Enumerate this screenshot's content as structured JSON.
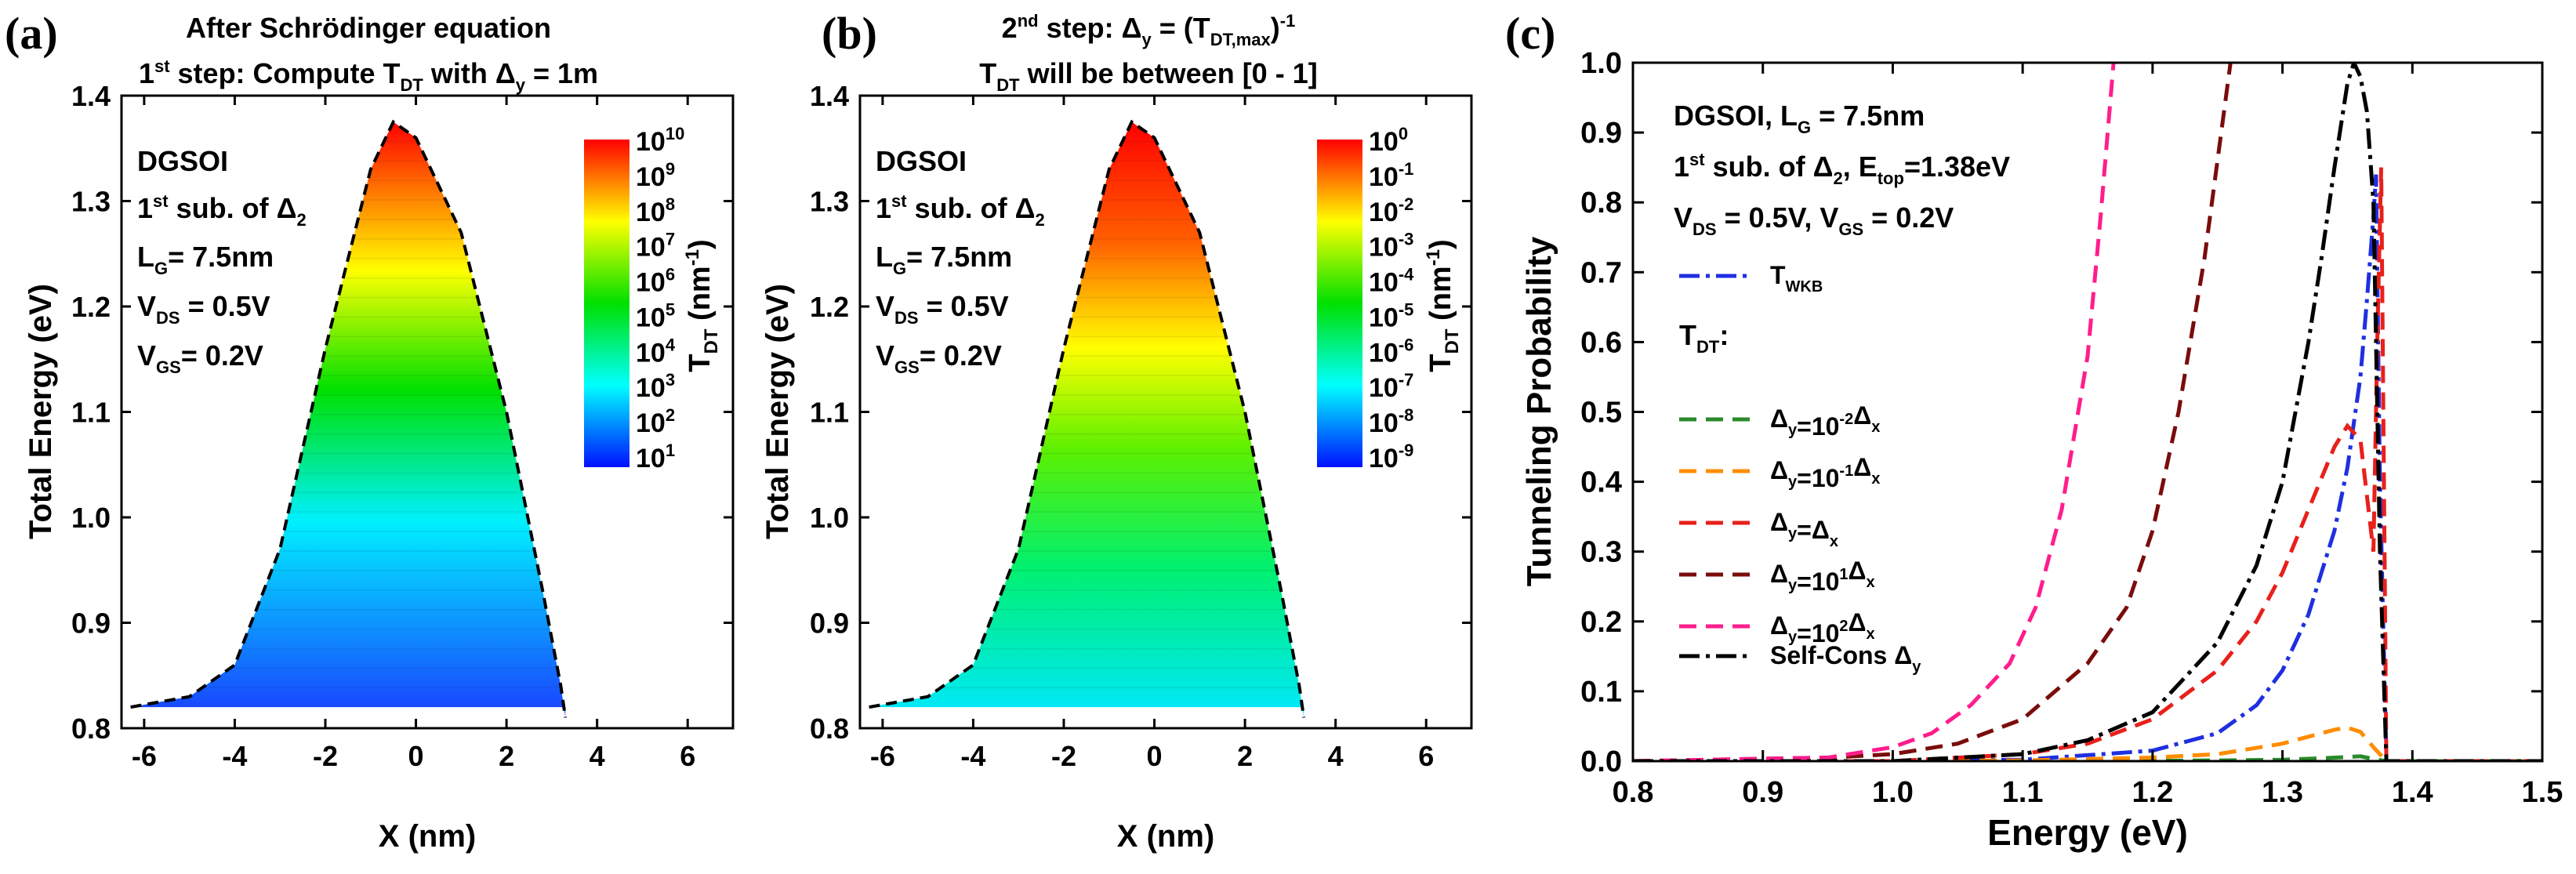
{
  "chart_data": [
    {
      "panel": "(a)",
      "type": "heatmap",
      "title_line1": "After Schrödinger equation",
      "title_line2_pre": "1",
      "title_line2_sup": "st",
      "title_line2_mid": " step: Compute T",
      "title_line2_sub": "DT",
      "title_line2_post1": " with Δ",
      "title_line2_sub2": "y",
      "title_line2_post2": " = 1m",
      "xlabel": "X (nm)",
      "ylabel": "Total Energy (eV)",
      "xlim": [
        -6.5,
        7.0
      ],
      "ylim": [
        0.8,
        1.4
      ],
      "xticks": [
        "-6",
        "-4",
        "-2",
        "0",
        "2",
        "4",
        "6"
      ],
      "xtick_values": [
        -6,
        -4,
        -2,
        0,
        2,
        4,
        6
      ],
      "yticks": [
        "0.8",
        "0.9",
        "1.0",
        "1.1",
        "1.2",
        "1.3",
        "1.4"
      ],
      "ytick_values": [
        0.8,
        0.9,
        1.0,
        1.1,
        1.2,
        1.3,
        1.4
      ],
      "annotations": {
        "l1": "DGSOI",
        "l2": "1",
        "l2_sup": "st",
        "l2_rest": " sub. of Δ",
        "l2_sub": "2",
        "l3": "L",
        "l3_sub": "G",
        "l3_rest": "= 7.5nm",
        "l4": "V",
        "l4_sub": "DS",
        "l4_rest": " = 0.5V",
        "l5": "V",
        "l5_sub": "GS",
        "l5_rest": "= 0.2V"
      },
      "barrier_profile": {
        "x": [
          -6.3,
          -5.0,
          -4.0,
          -3.0,
          -2.0,
          -1.0,
          -0.5,
          0.0,
          1.0,
          2.0,
          2.8,
          3.2,
          3.3
        ],
        "energy": [
          0.82,
          0.83,
          0.86,
          0.97,
          1.16,
          1.33,
          1.375,
          1.36,
          1.27,
          1.1,
          0.93,
          0.84,
          0.81
        ]
      },
      "colorbar": {
        "label": "T",
        "label_sub": "DT",
        "label_unit": " (nm",
        "label_unit_sup": "-1",
        "label_end": ")",
        "ticks": [
          {
            "base": "10",
            "exp": "10"
          },
          {
            "base": "10",
            "exp": "9"
          },
          {
            "base": "10",
            "exp": "8"
          },
          {
            "base": "10",
            "exp": "7"
          },
          {
            "base": "10",
            "exp": "6"
          },
          {
            "base": "10",
            "exp": "5"
          },
          {
            "base": "10",
            "exp": "4"
          },
          {
            "base": "10",
            "exp": "3"
          },
          {
            "base": "10",
            "exp": "2"
          },
          {
            "base": "10",
            "exp": "1"
          }
        ]
      }
    },
    {
      "panel": "(b)",
      "type": "heatmap",
      "title_line1_pre": "2",
      "title_line1_sup": "nd",
      "title_line1_mid": " step: Δ",
      "title_line1_sub": "y",
      "title_line1_post": " = (T",
      "title_line1_sub2": "DT,max",
      "title_line1_post2": ")",
      "title_line1_sup2": "-1",
      "title_line2_pre": "T",
      "title_line2_sub": "DT",
      "title_line2_post": " will be between [0 - 1]",
      "xlabel": "X (nm)",
      "ylabel": "Total Energy (eV)",
      "xlim": [
        -6.5,
        7.0
      ],
      "ylim": [
        0.8,
        1.4
      ],
      "xticks": [
        "-6",
        "-4",
        "-2",
        "0",
        "2",
        "4",
        "6"
      ],
      "xtick_values": [
        -6,
        -4,
        -2,
        0,
        2,
        4,
        6
      ],
      "yticks": [
        "0.8",
        "0.9",
        "1.0",
        "1.1",
        "1.2",
        "1.3",
        "1.4"
      ],
      "ytick_values": [
        0.8,
        0.9,
        1.0,
        1.1,
        1.2,
        1.3,
        1.4
      ],
      "annotations": {
        "l1": "DGSOI",
        "l2": "1",
        "l2_sup": "st",
        "l2_rest": " sub. of Δ",
        "l2_sub": "2",
        "l3": "L",
        "l3_sub": "G",
        "l3_rest": "= 7.5nm",
        "l4": "V",
        "l4_sub": "DS",
        "l4_rest": " = 0.5V",
        "l5": "V",
        "l5_sub": "GS",
        "l5_rest": "= 0.2V"
      },
      "barrier_profile": {
        "x": [
          -6.3,
          -5.0,
          -4.0,
          -3.0,
          -2.0,
          -1.0,
          -0.5,
          0.0,
          1.0,
          2.0,
          2.8,
          3.2,
          3.3
        ],
        "energy": [
          0.82,
          0.83,
          0.86,
          0.97,
          1.16,
          1.33,
          1.375,
          1.36,
          1.27,
          1.1,
          0.93,
          0.84,
          0.81
        ]
      },
      "colorbar": {
        "label": "T",
        "label_sub": "DT",
        "label_unit": " (nm",
        "label_unit_sup": "-1",
        "label_end": ")",
        "ticks": [
          {
            "base": "10",
            "exp": "0"
          },
          {
            "base": "10",
            "exp": "-1"
          },
          {
            "base": "10",
            "exp": "-2"
          },
          {
            "base": "10",
            "exp": "-3"
          },
          {
            "base": "10",
            "exp": "-4"
          },
          {
            "base": "10",
            "exp": "-5"
          },
          {
            "base": "10",
            "exp": "-6"
          },
          {
            "base": "10",
            "exp": "-7"
          },
          {
            "base": "10",
            "exp": "-8"
          },
          {
            "base": "10",
            "exp": "-9"
          }
        ]
      }
    },
    {
      "panel": "(c)",
      "type": "line",
      "xlabel": "Energy (eV)",
      "ylabel": "Tunneling Probability",
      "xlim": [
        0.8,
        1.5
      ],
      "ylim": [
        0.0,
        1.0
      ],
      "xticks": [
        "0.8",
        "0.9",
        "1.0",
        "1.1",
        "1.2",
        "1.3",
        "1.4",
        "1.5"
      ],
      "xtick_values": [
        0.8,
        0.9,
        1.0,
        1.1,
        1.2,
        1.3,
        1.4,
        1.5
      ],
      "yticks": [
        "0.0",
        "0.1",
        "0.2",
        "0.3",
        "0.4",
        "0.5",
        "0.6",
        "0.7",
        "0.8",
        "0.9",
        "1.0"
      ],
      "ytick_values": [
        0.0,
        0.1,
        0.2,
        0.3,
        0.4,
        0.5,
        0.6,
        0.7,
        0.8,
        0.9,
        1.0
      ],
      "annotations": {
        "l1": "DGSOI, L",
        "l1_sub": "G",
        "l1_rest": " = 7.5nm",
        "l2": "1",
        "l2_sup": "st",
        "l2_mid": " sub. of Δ",
        "l2_sub": "2",
        "l2_mid2": ", E",
        "l2_sub2": "top",
        "l2_rest": "=1.38eV",
        "l3": "V",
        "l3_sub": "DS",
        "l3_mid": " = 0.5V, V",
        "l3_sub2": "GS",
        "l3_rest": " = 0.2V",
        "tdt": "T",
        "tdt_sub": "DT",
        "tdt_rest": ":"
      },
      "series": [
        {
          "name": "T",
          "name_sub": "WKB",
          "name_sup": "",
          "name_rest": "",
          "name_sub2": "",
          "color": "#1f2fe0",
          "dash": "26,8,5,8",
          "x": [
            0.8,
            1.0,
            1.1,
            1.2,
            1.25,
            1.28,
            1.3,
            1.32,
            1.34,
            1.35,
            1.36,
            1.365,
            1.37,
            1.372,
            1.375,
            1.38,
            1.5
          ],
          "y": [
            0.0,
            0.0,
            0.002,
            0.015,
            0.04,
            0.08,
            0.13,
            0.21,
            0.33,
            0.42,
            0.55,
            0.66,
            0.78,
            0.84,
            0.4,
            0.0,
            0.0
          ]
        },
        {
          "name": "Δ",
          "name_sub": "y",
          "name_sup": "-2",
          "name_rest": "=10",
          "name_sub2": "x",
          "color": "#2a8a2a",
          "dash": "22,12",
          "x": [
            0.8,
            1.1,
            1.2,
            1.25,
            1.3,
            1.33,
            1.35,
            1.36,
            1.37,
            1.38,
            1.5
          ],
          "y": [
            0.0,
            0.0,
            0.0005,
            0.001,
            0.002,
            0.004,
            0.006,
            0.007,
            0.003,
            0.0,
            0.0
          ]
        },
        {
          "name": "Δ",
          "name_sub": "y",
          "name_sup": "-1",
          "name_rest": "=10",
          "name_sub2": "x",
          "color": "#ff8c00",
          "dash": "22,12",
          "x": [
            0.8,
            1.0,
            1.1,
            1.2,
            1.25,
            1.3,
            1.32,
            1.34,
            1.35,
            1.36,
            1.37,
            1.38,
            1.5
          ],
          "y": [
            0.0,
            0.0,
            0.001,
            0.005,
            0.01,
            0.025,
            0.035,
            0.045,
            0.048,
            0.042,
            0.02,
            0.0,
            0.0
          ]
        },
        {
          "name": "Δ",
          "name_sub": "y",
          "name_sup": "",
          "name_rest": "=Δ",
          "name_sub2": "x",
          "color": "#e8201a",
          "dash": "22,12",
          "x": [
            0.8,
            1.0,
            1.1,
            1.15,
            1.2,
            1.25,
            1.28,
            1.3,
            1.32,
            1.34,
            1.35,
            1.36,
            1.365,
            1.37,
            1.373,
            1.376,
            1.38,
            1.5
          ],
          "y": [
            0.0,
            0.0,
            0.01,
            0.025,
            0.06,
            0.13,
            0.2,
            0.27,
            0.36,
            0.45,
            0.48,
            0.46,
            0.38,
            0.3,
            0.6,
            0.85,
            0.0,
            0.0
          ]
        },
        {
          "name": "Δ",
          "name_sub": "y",
          "name_sup": "1",
          "name_rest": "=10",
          "name_sub2": "x",
          "color": "#7a0c0c",
          "dash": "22,12",
          "x": [
            0.8,
            0.95,
            1.0,
            1.05,
            1.1,
            1.15,
            1.18,
            1.2,
            1.22,
            1.24,
            1.25,
            1.26
          ],
          "y": [
            0.0,
            0.005,
            0.01,
            0.025,
            0.06,
            0.14,
            0.22,
            0.33,
            0.5,
            0.72,
            0.86,
            1.0
          ]
        },
        {
          "name": "Δ",
          "name_sub": "y",
          "name_sup": "2",
          "name_rest": "=10",
          "name_sub2": "x",
          "color": "#ff1d8c",
          "dash": "22,12",
          "x": [
            0.8,
            0.95,
            1.0,
            1.03,
            1.06,
            1.09,
            1.11,
            1.13,
            1.15,
            1.16,
            1.17
          ],
          "y": [
            0.0,
            0.005,
            0.02,
            0.04,
            0.08,
            0.14,
            0.22,
            0.36,
            0.58,
            0.78,
            1.0
          ]
        },
        {
          "name": "Self-Cons Δ",
          "name_sub": "y",
          "name_sup": "",
          "name_rest": "",
          "name_sub2": "",
          "color": "#000000",
          "dash": "26,8,5,8",
          "x": [
            0.8,
            1.0,
            1.1,
            1.15,
            1.2,
            1.25,
            1.28,
            1.3,
            1.32,
            1.33,
            1.34,
            1.35,
            1.355,
            1.36,
            1.365,
            1.37,
            1.375,
            1.38,
            1.5
          ],
          "y": [
            0.0,
            0.0,
            0.01,
            0.03,
            0.07,
            0.17,
            0.28,
            0.4,
            0.6,
            0.72,
            0.85,
            0.97,
            1.0,
            0.98,
            0.93,
            0.8,
            0.3,
            0.0,
            0.0
          ]
        }
      ]
    }
  ]
}
